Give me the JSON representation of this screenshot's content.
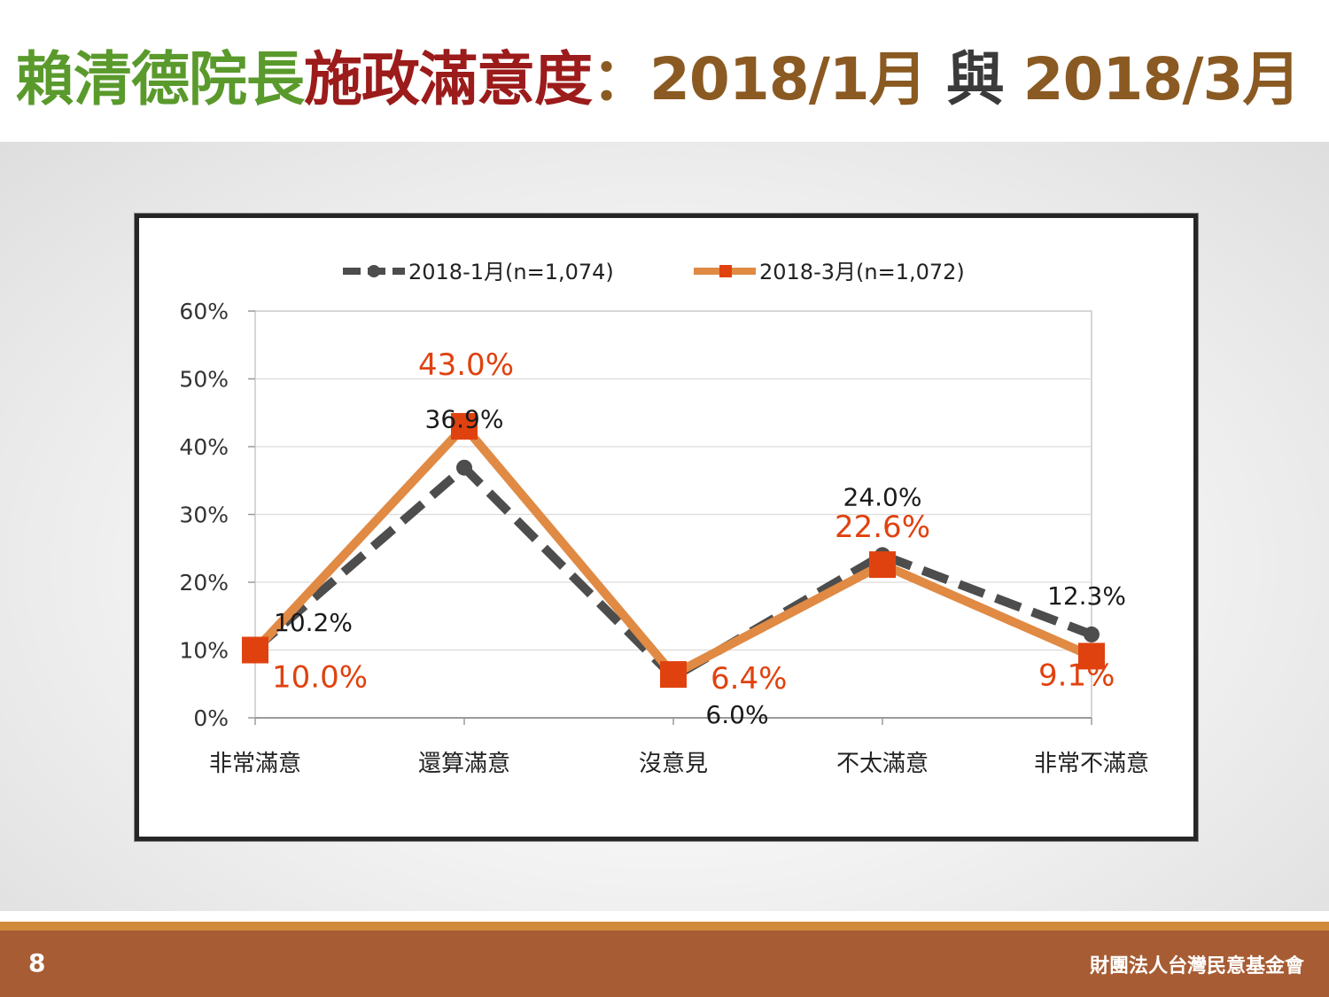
{
  "title": {
    "part1": "賴清德院長",
    "part2": "施政滿意度",
    "part3": "：2018/1月 ",
    "part4": "與",
    "part5": " 2018/3月"
  },
  "footer": {
    "page_number": "8",
    "organization": "財團法人台灣民意基金會"
  },
  "colors": {
    "title_green": "#5a9a2c",
    "title_red": "#9c1b1b",
    "title_brown": "#8a5a22",
    "series_jan": "#4d4d4d",
    "series_mar": "#e08a44",
    "marker_mar": "#e0420f",
    "label_mar": "#e0420f",
    "footer_bg": "#a75c33"
  },
  "chart_data": {
    "type": "line",
    "categories": [
      "非常滿意",
      "還算滿意",
      "沒意見",
      "不太滿意",
      "非常不滿意"
    ],
    "series": [
      {
        "name": "2018-1月(n=1,074)",
        "values": [
          10.2,
          36.9,
          6.0,
          24.0,
          12.3
        ],
        "labels": [
          "10.2%",
          "36.9%",
          "6.0%",
          "24.0%",
          "12.3%"
        ],
        "style": "dashed"
      },
      {
        "name": "2018-3月(n=1,072)",
        "values": [
          10.0,
          43.0,
          6.4,
          22.6,
          9.1
        ],
        "labels": [
          "10.0%",
          "43.0%",
          "6.4%",
          "22.6%",
          "9.1%"
        ],
        "style": "solid"
      }
    ],
    "yticks": [
      "0%",
      "10%",
      "20%",
      "30%",
      "40%",
      "50%",
      "60%"
    ],
    "ylim": [
      0,
      60
    ],
    "ylabel": "",
    "xlabel": "",
    "grid": true,
    "legend": "top"
  }
}
